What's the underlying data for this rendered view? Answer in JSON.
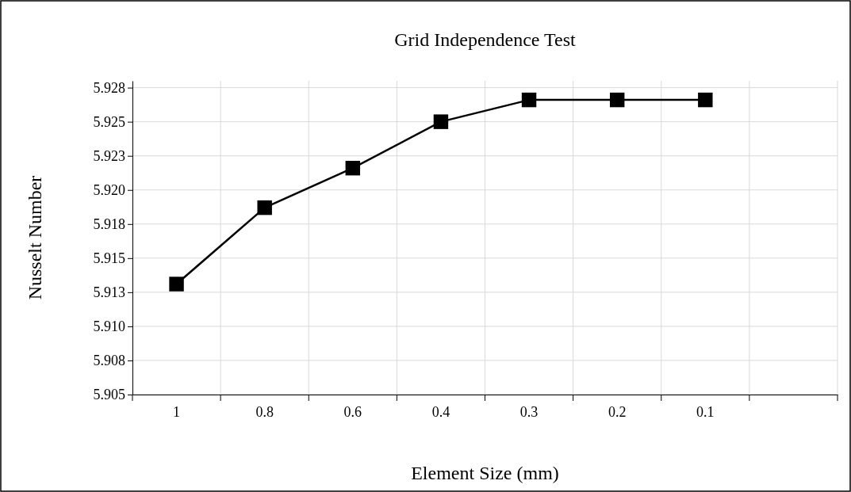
{
  "chart_data": {
    "type": "line",
    "title": "Grid Independence Test",
    "xlabel": "Element Size (mm)",
    "ylabel": "Nusselt Number",
    "categories": [
      "1",
      "0.8",
      "0.6",
      "0.4",
      "0.3",
      "0.2",
      "0.1",
      null
    ],
    "series": [
      {
        "color": "#000000",
        "values": [
          5.9131,
          5.9187,
          5.9216,
          5.925,
          5.9266,
          5.9266,
          5.9266,
          null
        ]
      }
    ],
    "ylim": [
      5.905,
      5.928
    ],
    "yticks": [
      5.905,
      {
        "value": 5.9075,
        "label": "5.908"
      },
      {
        "value": 5.91,
        "label": "5.910"
      },
      {
        "value": 5.9125,
        "label": "5.913"
      },
      5.915,
      {
        "value": 5.9175,
        "label": "5.918"
      },
      {
        "value": 5.92,
        "label": "5.920"
      },
      {
        "value": 5.9225,
        "label": "5.923"
      },
      5.925,
      {
        "value": 5.9275,
        "label": "5.928"
      }
    ],
    "grid": true,
    "marker": "square",
    "line_style": "solid"
  }
}
